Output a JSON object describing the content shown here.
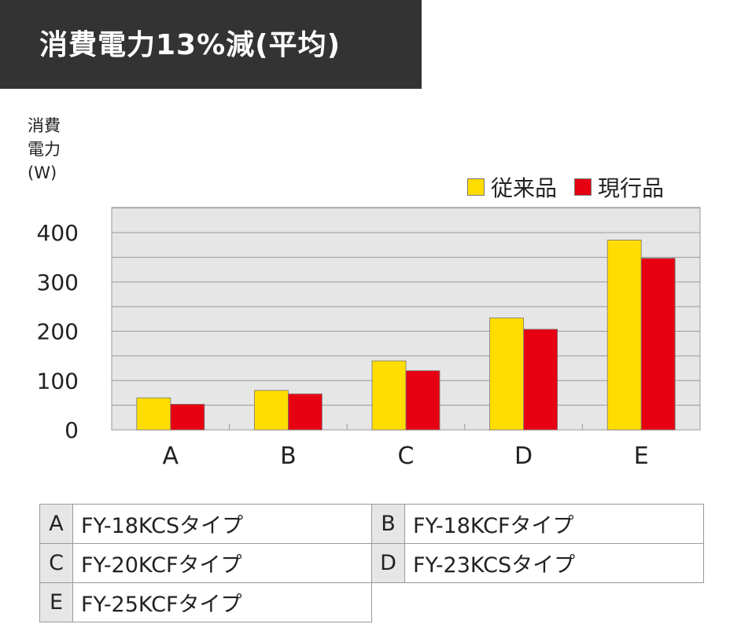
{
  "header": {
    "title": "消費電力13%減(平均)"
  },
  "colors": {
    "banner": "#333333",
    "plot_bg": "#e6e6e6",
    "old": "#ffdd00",
    "new": "#e60012"
  },
  "chart_data": {
    "type": "bar",
    "categories": [
      "A",
      "B",
      "C",
      "D",
      "E"
    ],
    "series": [
      {
        "name": "従来品",
        "color": "#ffdd00",
        "values": [
          65,
          80,
          140,
          227,
          385
        ]
      },
      {
        "name": "現行品",
        "color": "#e60012",
        "values": [
          52,
          73,
          120,
          204,
          348
        ]
      }
    ],
    "ylabel_lines": [
      "消費",
      "電力",
      "(W)"
    ],
    "yticks": [
      0,
      100,
      200,
      300,
      400
    ],
    "ylim": [
      0,
      400
    ],
    "grid": true,
    "legend_position": "top-right"
  },
  "models": [
    {
      "key": "A",
      "name": "FY-18KCSタイプ"
    },
    {
      "key": "B",
      "name": "FY-18KCFタイプ"
    },
    {
      "key": "C",
      "name": "FY-20KCFタイプ"
    },
    {
      "key": "D",
      "name": "FY-23KCSタイプ"
    },
    {
      "key": "E",
      "name": "FY-25KCFタイプ"
    }
  ]
}
